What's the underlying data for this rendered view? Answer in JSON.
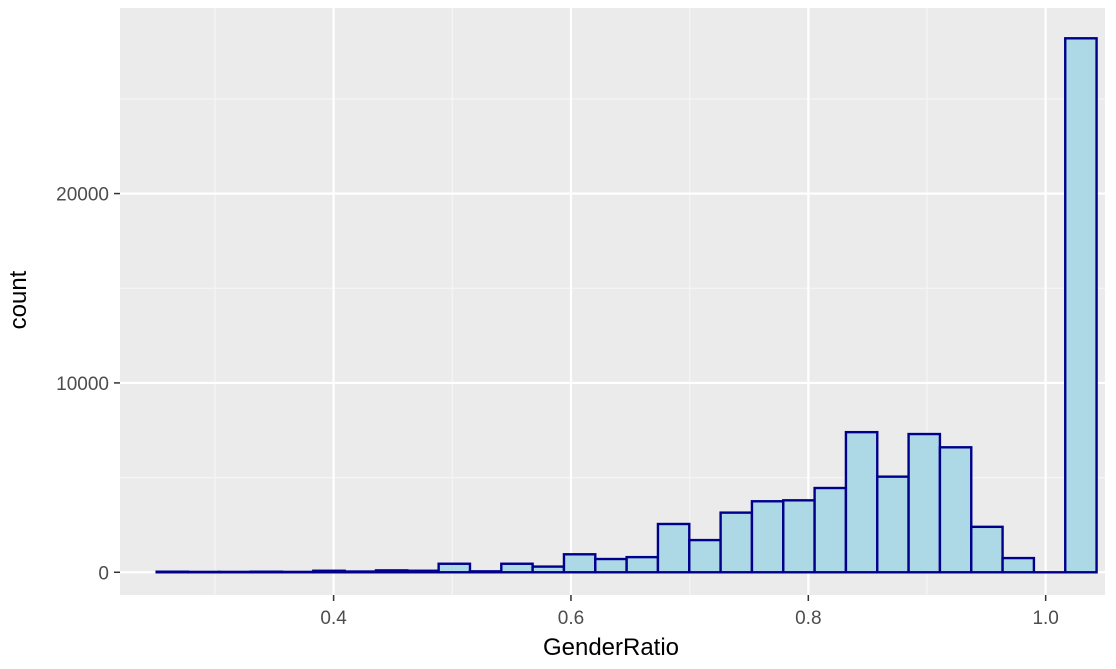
{
  "colors": {
    "panel_background": "#ebebeb",
    "grid_major": "#ffffff",
    "grid_minor": "#f5f5f5",
    "bar_fill": "#add8e6",
    "bar_outline": "#00008b",
    "tick_label": "#4d4d4d",
    "tick_mark": "#333333",
    "axis_title": "#000000"
  },
  "chart_data": {
    "type": "bar",
    "subtype": "histogram",
    "title": "",
    "xlabel": "GenderRatio",
    "ylabel": "count",
    "xlim": [
      0.22,
      1.05
    ],
    "ylim": [
      -1200,
      29800
    ],
    "x_ticks": [
      0.4,
      0.6,
      0.8,
      1.0
    ],
    "x_tick_labels": [
      "0.4",
      "0.6",
      "0.8",
      "1.0"
    ],
    "y_ticks": [
      0,
      10000,
      20000
    ],
    "y_tick_labels": [
      "0",
      "10000",
      "20000"
    ],
    "grid": true,
    "legend": "none",
    "bin_width": 0.0264,
    "bins": [
      {
        "x_min": 0.2509,
        "x_max": 0.2773,
        "count": 30
      },
      {
        "x_min": 0.2773,
        "x_max": 0.3037,
        "count": 20
      },
      {
        "x_min": 0.3037,
        "x_max": 0.3301,
        "count": 20
      },
      {
        "x_min": 0.3301,
        "x_max": 0.3565,
        "count": 30
      },
      {
        "x_min": 0.3565,
        "x_max": 0.3829,
        "count": 20
      },
      {
        "x_min": 0.3829,
        "x_max": 0.4093,
        "count": 80
      },
      {
        "x_min": 0.4093,
        "x_max": 0.4357,
        "count": 40
      },
      {
        "x_min": 0.4357,
        "x_max": 0.4621,
        "count": 100
      },
      {
        "x_min": 0.4621,
        "x_max": 0.4885,
        "count": 80
      },
      {
        "x_min": 0.4885,
        "x_max": 0.5149,
        "count": 450
      },
      {
        "x_min": 0.5149,
        "x_max": 0.5413,
        "count": 50
      },
      {
        "x_min": 0.5413,
        "x_max": 0.5677,
        "count": 450
      },
      {
        "x_min": 0.5677,
        "x_max": 0.5941,
        "count": 300
      },
      {
        "x_min": 0.5941,
        "x_max": 0.6205,
        "count": 950
      },
      {
        "x_min": 0.6205,
        "x_max": 0.6469,
        "count": 700
      },
      {
        "x_min": 0.6469,
        "x_max": 0.6733,
        "count": 800
      },
      {
        "x_min": 0.6733,
        "x_max": 0.6997,
        "count": 2550
      },
      {
        "x_min": 0.6997,
        "x_max": 0.7261,
        "count": 1700
      },
      {
        "x_min": 0.7261,
        "x_max": 0.7525,
        "count": 3150
      },
      {
        "x_min": 0.7525,
        "x_max": 0.7789,
        "count": 3750
      },
      {
        "x_min": 0.7789,
        "x_max": 0.8053,
        "count": 3800
      },
      {
        "x_min": 0.8053,
        "x_max": 0.8317,
        "count": 4450
      },
      {
        "x_min": 0.8317,
        "x_max": 0.8581,
        "count": 7400
      },
      {
        "x_min": 0.8581,
        "x_max": 0.8845,
        "count": 5050
      },
      {
        "x_min": 0.8845,
        "x_max": 0.9109,
        "count": 7300
      },
      {
        "x_min": 0.9109,
        "x_max": 0.9373,
        "count": 6600
      },
      {
        "x_min": 0.9373,
        "x_max": 0.9637,
        "count": 2400
      },
      {
        "x_min": 0.9637,
        "x_max": 0.9901,
        "count": 750
      },
      {
        "x_min": 0.9901,
        "x_max": 1.0165,
        "count": 0
      },
      {
        "x_min": 1.0165,
        "x_max": 1.0429,
        "count": 28200
      }
    ]
  }
}
